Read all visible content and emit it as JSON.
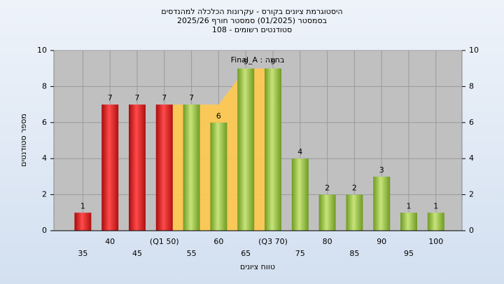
{
  "chart_data": {
    "type": "bar",
    "title": [
      "היסטוגרמת ציונים בקורס - עקרונות הכלכלה למהנדסים",
      "בסמסטר  (01/2025)  סמסטר חורף 2025/26",
      "סטודנטים רשומים - 108"
    ],
    "annotation": "בחינה : Final_A",
    "xlabel": "טווח ציונים",
    "ylabel": "מספר סטודנטים",
    "categories": [
      "35",
      "40",
      "45",
      "(Q1 50)",
      "55",
      "60",
      "65",
      "(Q3 70)",
      "75",
      "80",
      "85",
      "90",
      "95",
      "100"
    ],
    "values": [
      1,
      7,
      7,
      7,
      7,
      6,
      9,
      9,
      4,
      2,
      2,
      3,
      1,
      1
    ],
    "colors": [
      "#e02020",
      "#e02020",
      "#e02020",
      "#e02020",
      "#8fba3c",
      "#8fba3c",
      "#8fba3c",
      "#8fba3c",
      "#8fba3c",
      "#8fba3c",
      "#8fba3c",
      "#8fba3c",
      "#8fba3c",
      "#8fba3c"
    ],
    "ylim": [
      0,
      10
    ],
    "yticks": [
      0,
      2,
      4,
      6,
      8,
      10
    ],
    "grid": true
  }
}
